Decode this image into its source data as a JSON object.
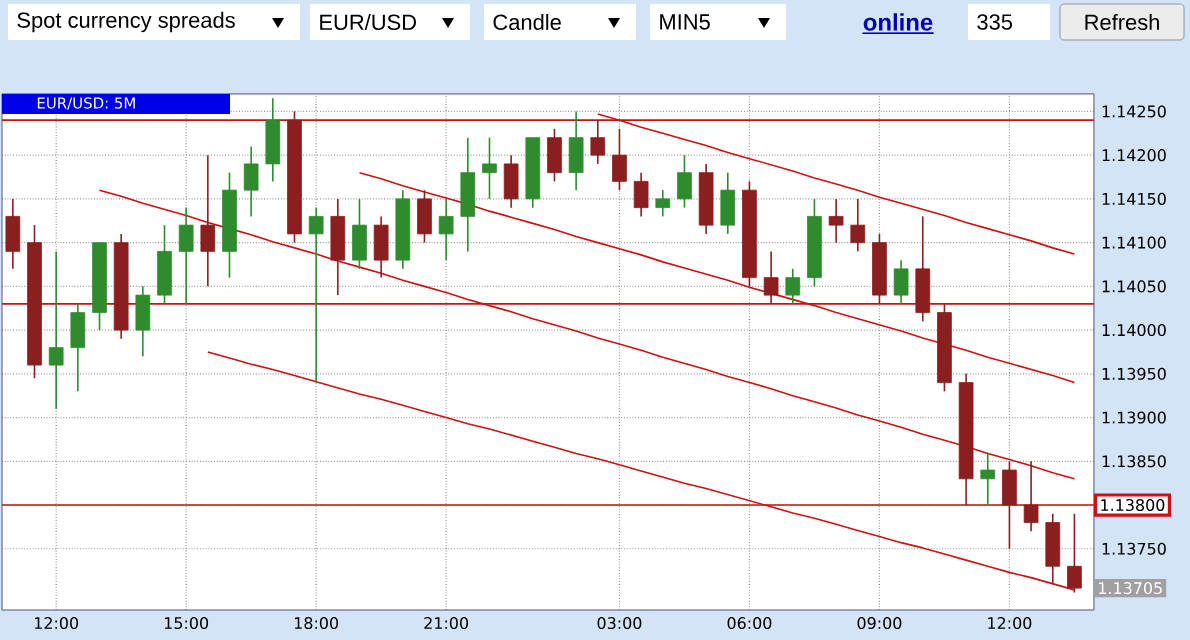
{
  "chart_data": {
    "type": "candlestick",
    "title": "EUR/USD: 5M",
    "annotations": [
      "Spot currency spreads",
      "EUR/USD",
      "Candle",
      "MIN5",
      "online",
      "335",
      "Refresh",
      "1.13705"
    ],
    "categories": [
      null,
      null,
      "12:00",
      null,
      null,
      null,
      null,
      null,
      "15:00",
      null,
      null,
      null,
      null,
      null,
      "18:00",
      null,
      null,
      null,
      null,
      null,
      "21:00",
      null,
      null,
      null,
      null,
      null,
      null,
      null,
      "03:00",
      null,
      null,
      null,
      null,
      null,
      "06:00",
      null,
      null,
      null,
      null,
      null,
      "09:00",
      null,
      null,
      null,
      null,
      null,
      "12:00",
      null,
      null,
      null
    ],
    "ohlc": [
      [
        1.1413,
        1.1415,
        1.1407,
        1.1409
      ],
      [
        1.141,
        1.1412,
        1.13945,
        1.1396
      ],
      [
        1.1396,
        1.1409,
        1.1391,
        1.1398
      ],
      [
        1.1398,
        1.1403,
        1.1393,
        1.1402
      ],
      [
        1.1402,
        1.141,
        1.14,
        1.141
      ],
      [
        1.141,
        1.1411,
        1.1399,
        1.14
      ],
      [
        1.14,
        1.1405,
        1.1397,
        1.1404
      ],
      [
        1.1404,
        1.1412,
        1.1403,
        1.1409
      ],
      [
        1.1409,
        1.1414,
        1.1403,
        1.1412
      ],
      [
        1.1412,
        1.142,
        1.1405,
        1.1409
      ],
      [
        1.1409,
        1.1418,
        1.1406,
        1.1416
      ],
      [
        1.1416,
        1.1421,
        1.1413,
        1.1419
      ],
      [
        1.1419,
        1.14265,
        1.1417,
        1.1424
      ],
      [
        1.1424,
        1.1425,
        1.141,
        1.1411
      ],
      [
        1.1411,
        1.1414,
        1.1394,
        1.1413
      ],
      [
        1.1413,
        1.1415,
        1.1404,
        1.1408
      ],
      [
        1.1408,
        1.1415,
        1.1407,
        1.1412
      ],
      [
        1.1412,
        1.1413,
        1.1406,
        1.1408
      ],
      [
        1.1408,
        1.1416,
        1.1407,
        1.1415
      ],
      [
        1.1415,
        1.1416,
        1.141,
        1.1411
      ],
      [
        1.1411,
        1.1415,
        1.1408,
        1.1413
      ],
      [
        1.1413,
        1.1422,
        1.1409,
        1.1418
      ],
      [
        1.1418,
        1.1422,
        1.1415,
        1.1419
      ],
      [
        1.1419,
        1.142,
        1.1414,
        1.1415
      ],
      [
        1.1415,
        1.1422,
        1.1414,
        1.1422
      ],
      [
        1.1422,
        1.1423,
        1.1417,
        1.1418
      ],
      [
        1.1418,
        1.1425,
        1.1416,
        1.1422
      ],
      [
        1.1422,
        1.1424,
        1.1419,
        1.142
      ],
      [
        1.142,
        1.1423,
        1.1416,
        1.1417
      ],
      [
        1.1417,
        1.1418,
        1.1413,
        1.1414
      ],
      [
        1.1414,
        1.1416,
        1.1413,
        1.1415
      ],
      [
        1.1415,
        1.142,
        1.1414,
        1.1418
      ],
      [
        1.1418,
        1.1419,
        1.1411,
        1.1412
      ],
      [
        1.1412,
        1.1418,
        1.1411,
        1.1416
      ],
      [
        1.1416,
        1.1417,
        1.1405,
        1.1406
      ],
      [
        1.1406,
        1.1409,
        1.1403,
        1.1404
      ],
      [
        1.1404,
        1.1407,
        1.1403,
        1.1406
      ],
      [
        1.1406,
        1.1415,
        1.1405,
        1.1413
      ],
      [
        1.1413,
        1.1415,
        1.141,
        1.1412
      ],
      [
        1.1412,
        1.1415,
        1.1409,
        1.141
      ],
      [
        1.141,
        1.1411,
        1.1403,
        1.1404
      ],
      [
        1.1404,
        1.1408,
        1.1403,
        1.1407
      ],
      [
        1.1407,
        1.1413,
        1.1401,
        1.1402
      ],
      [
        1.1402,
        1.1403,
        1.1393,
        1.1394
      ],
      [
        1.1394,
        1.1395,
        1.138,
        1.1383
      ],
      [
        1.1383,
        1.1386,
        1.138,
        1.1384
      ],
      [
        1.1384,
        1.1385,
        1.1375,
        1.138
      ],
      [
        1.138,
        1.1385,
        1.1377,
        1.1378
      ],
      [
        1.1378,
        1.1379,
        1.1371,
        1.1373
      ],
      [
        1.1373,
        1.1379,
        1.137,
        1.13705
      ]
    ],
    "colors": [
      "#8b1e1e",
      "#8b1e1e",
      "#2e8b2e",
      "#2e8b2e",
      "#2e8b2e",
      "#8b1e1e",
      "#2e8b2e",
      "#2e8b2e",
      "#2e8b2e",
      "#8b1e1e",
      "#2e8b2e",
      "#2e8b2e",
      "#2e8b2e",
      "#8b1e1e",
      "#2e8b2e",
      "#8b1e1e",
      "#2e8b2e",
      "#8b1e1e",
      "#2e8b2e",
      "#8b1e1e",
      "#2e8b2e",
      "#2e8b2e",
      "#2e8b2e",
      "#8b1e1e",
      "#2e8b2e",
      "#8b1e1e",
      "#2e8b2e",
      "#8b1e1e",
      "#8b1e1e",
      "#8b1e1e",
      "#2e8b2e",
      "#2e8b2e",
      "#8b1e1e",
      "#2e8b2e",
      "#8b1e1e",
      "#8b1e1e",
      "#2e8b2e",
      "#2e8b2e",
      "#8b1e1e",
      "#8b1e1e",
      "#8b1e1e",
      "#2e8b2e",
      "#8b1e1e",
      "#8b1e1e",
      "#8b1e1e",
      "#2e8b2e",
      "#8b1e1e",
      "#8b1e1e",
      "#8b1e1e",
      "#8b1e1e"
    ],
    "series": [
      {
        "type": "line",
        "color": "#cc1111",
        "values": [
          null,
          null,
          null,
          null,
          1.1416,
          1.14153,
          1.14145,
          1.14138,
          1.14131,
          1.14123,
          1.14116,
          1.14109,
          1.14101,
          1.14094,
          1.14087,
          1.14079,
          1.14072,
          1.14065,
          1.14057,
          1.1405,
          1.14043,
          1.14035,
          1.14028,
          1.14021,
          1.14013,
          1.14006,
          1.13999,
          1.13991,
          1.13984,
          1.13977,
          1.13969,
          1.13962,
          1.13955,
          1.13947,
          1.1394,
          1.13933,
          1.13925,
          1.13918,
          1.13911,
          1.13903,
          1.13896,
          1.13889,
          1.13881,
          1.13874,
          1.13867,
          1.13859,
          1.13852,
          1.13845,
          1.13837,
          1.1383
        ]
      },
      {
        "type": "line",
        "color": "#cc1111",
        "values": [
          null,
          null,
          null,
          null,
          null,
          null,
          null,
          null,
          null,
          null,
          null,
          null,
          null,
          null,
          null,
          null,
          1.1418,
          1.14173,
          1.14165,
          1.14158,
          1.14151,
          1.14144,
          1.14136,
          1.14129,
          1.14122,
          1.14115,
          1.14107,
          1.141,
          1.14093,
          1.14086,
          1.14078,
          1.14071,
          1.14064,
          1.14057,
          1.14049,
          1.14042,
          1.14035,
          1.14028,
          1.1402,
          1.14013,
          1.14006,
          1.13999,
          1.13991,
          1.13984,
          1.13977,
          1.13969,
          1.13962,
          1.13955,
          1.13948,
          1.1394
        ]
      },
      {
        "type": "line",
        "color": "#cc1111",
        "values": [
          null,
          null,
          null,
          null,
          null,
          null,
          null,
          null,
          null,
          1.13975,
          1.13968,
          1.13961,
          1.13955,
          1.13948,
          1.13941,
          1.13934,
          1.13927,
          1.13921,
          1.13914,
          1.13907,
          1.139,
          1.13893,
          1.13887,
          1.1388,
          1.13873,
          1.13866,
          1.13859,
          1.13853,
          1.13846,
          1.13839,
          1.13832,
          1.13825,
          1.13819,
          1.13812,
          1.13805,
          1.13798,
          1.13791,
          1.13785,
          1.13778,
          1.13771,
          1.13764,
          1.13757,
          1.13751,
          1.13744,
          1.13737,
          1.1373,
          1.13723,
          1.13717,
          1.1371,
          1.13703
        ]
      },
      {
        "type": "line",
        "color": "#cc1111",
        "values": [
          null,
          null,
          null,
          null,
          null,
          null,
          null,
          null,
          null,
          null,
          null,
          null,
          null,
          null,
          null,
          null,
          null,
          null,
          null,
          null,
          null,
          null,
          null,
          null,
          null,
          null,
          null,
          1.14247,
          1.1424,
          1.14232,
          1.14225,
          1.14218,
          1.14211,
          1.14203,
          1.14196,
          1.14189,
          1.14182,
          1.14174,
          1.14167,
          1.1416,
          1.14152,
          1.14145,
          1.14138,
          1.14131,
          1.14123,
          1.14116,
          1.14109,
          1.14102,
          1.14094,
          1.14087
        ]
      }
    ],
    "ref_lines": [
      {
        "axis": "y",
        "value": 1.1424,
        "color": "#cc1111"
      },
      {
        "axis": "y",
        "value": 1.1403,
        "color": "#cc1111"
      },
      {
        "axis": "y",
        "value": 1.138,
        "label": "1.13800",
        "color": "#cc1111"
      }
    ],
    "ylim": [
      1.1368,
      1.1427
    ],
    "yticks": [
      {
        "value": 1.1425,
        "label": "1.14250"
      },
      {
        "value": 1.142,
        "label": "1.14200"
      },
      {
        "value": 1.1415,
        "label": "1.14150"
      },
      {
        "value": 1.141,
        "label": "1.14100"
      },
      {
        "value": 1.1405,
        "label": "1.14050"
      },
      {
        "value": 1.14,
        "label": "1.14000"
      },
      {
        "value": 1.1395,
        "label": "1.13950"
      },
      {
        "value": 1.139,
        "label": "1.13900"
      },
      {
        "value": 1.1385,
        "label": "1.13850"
      },
      {
        "value": 1.138,
        "label": null
      },
      {
        "value": 1.1375,
        "label": "1.13750"
      }
    ],
    "grid": true
  }
}
